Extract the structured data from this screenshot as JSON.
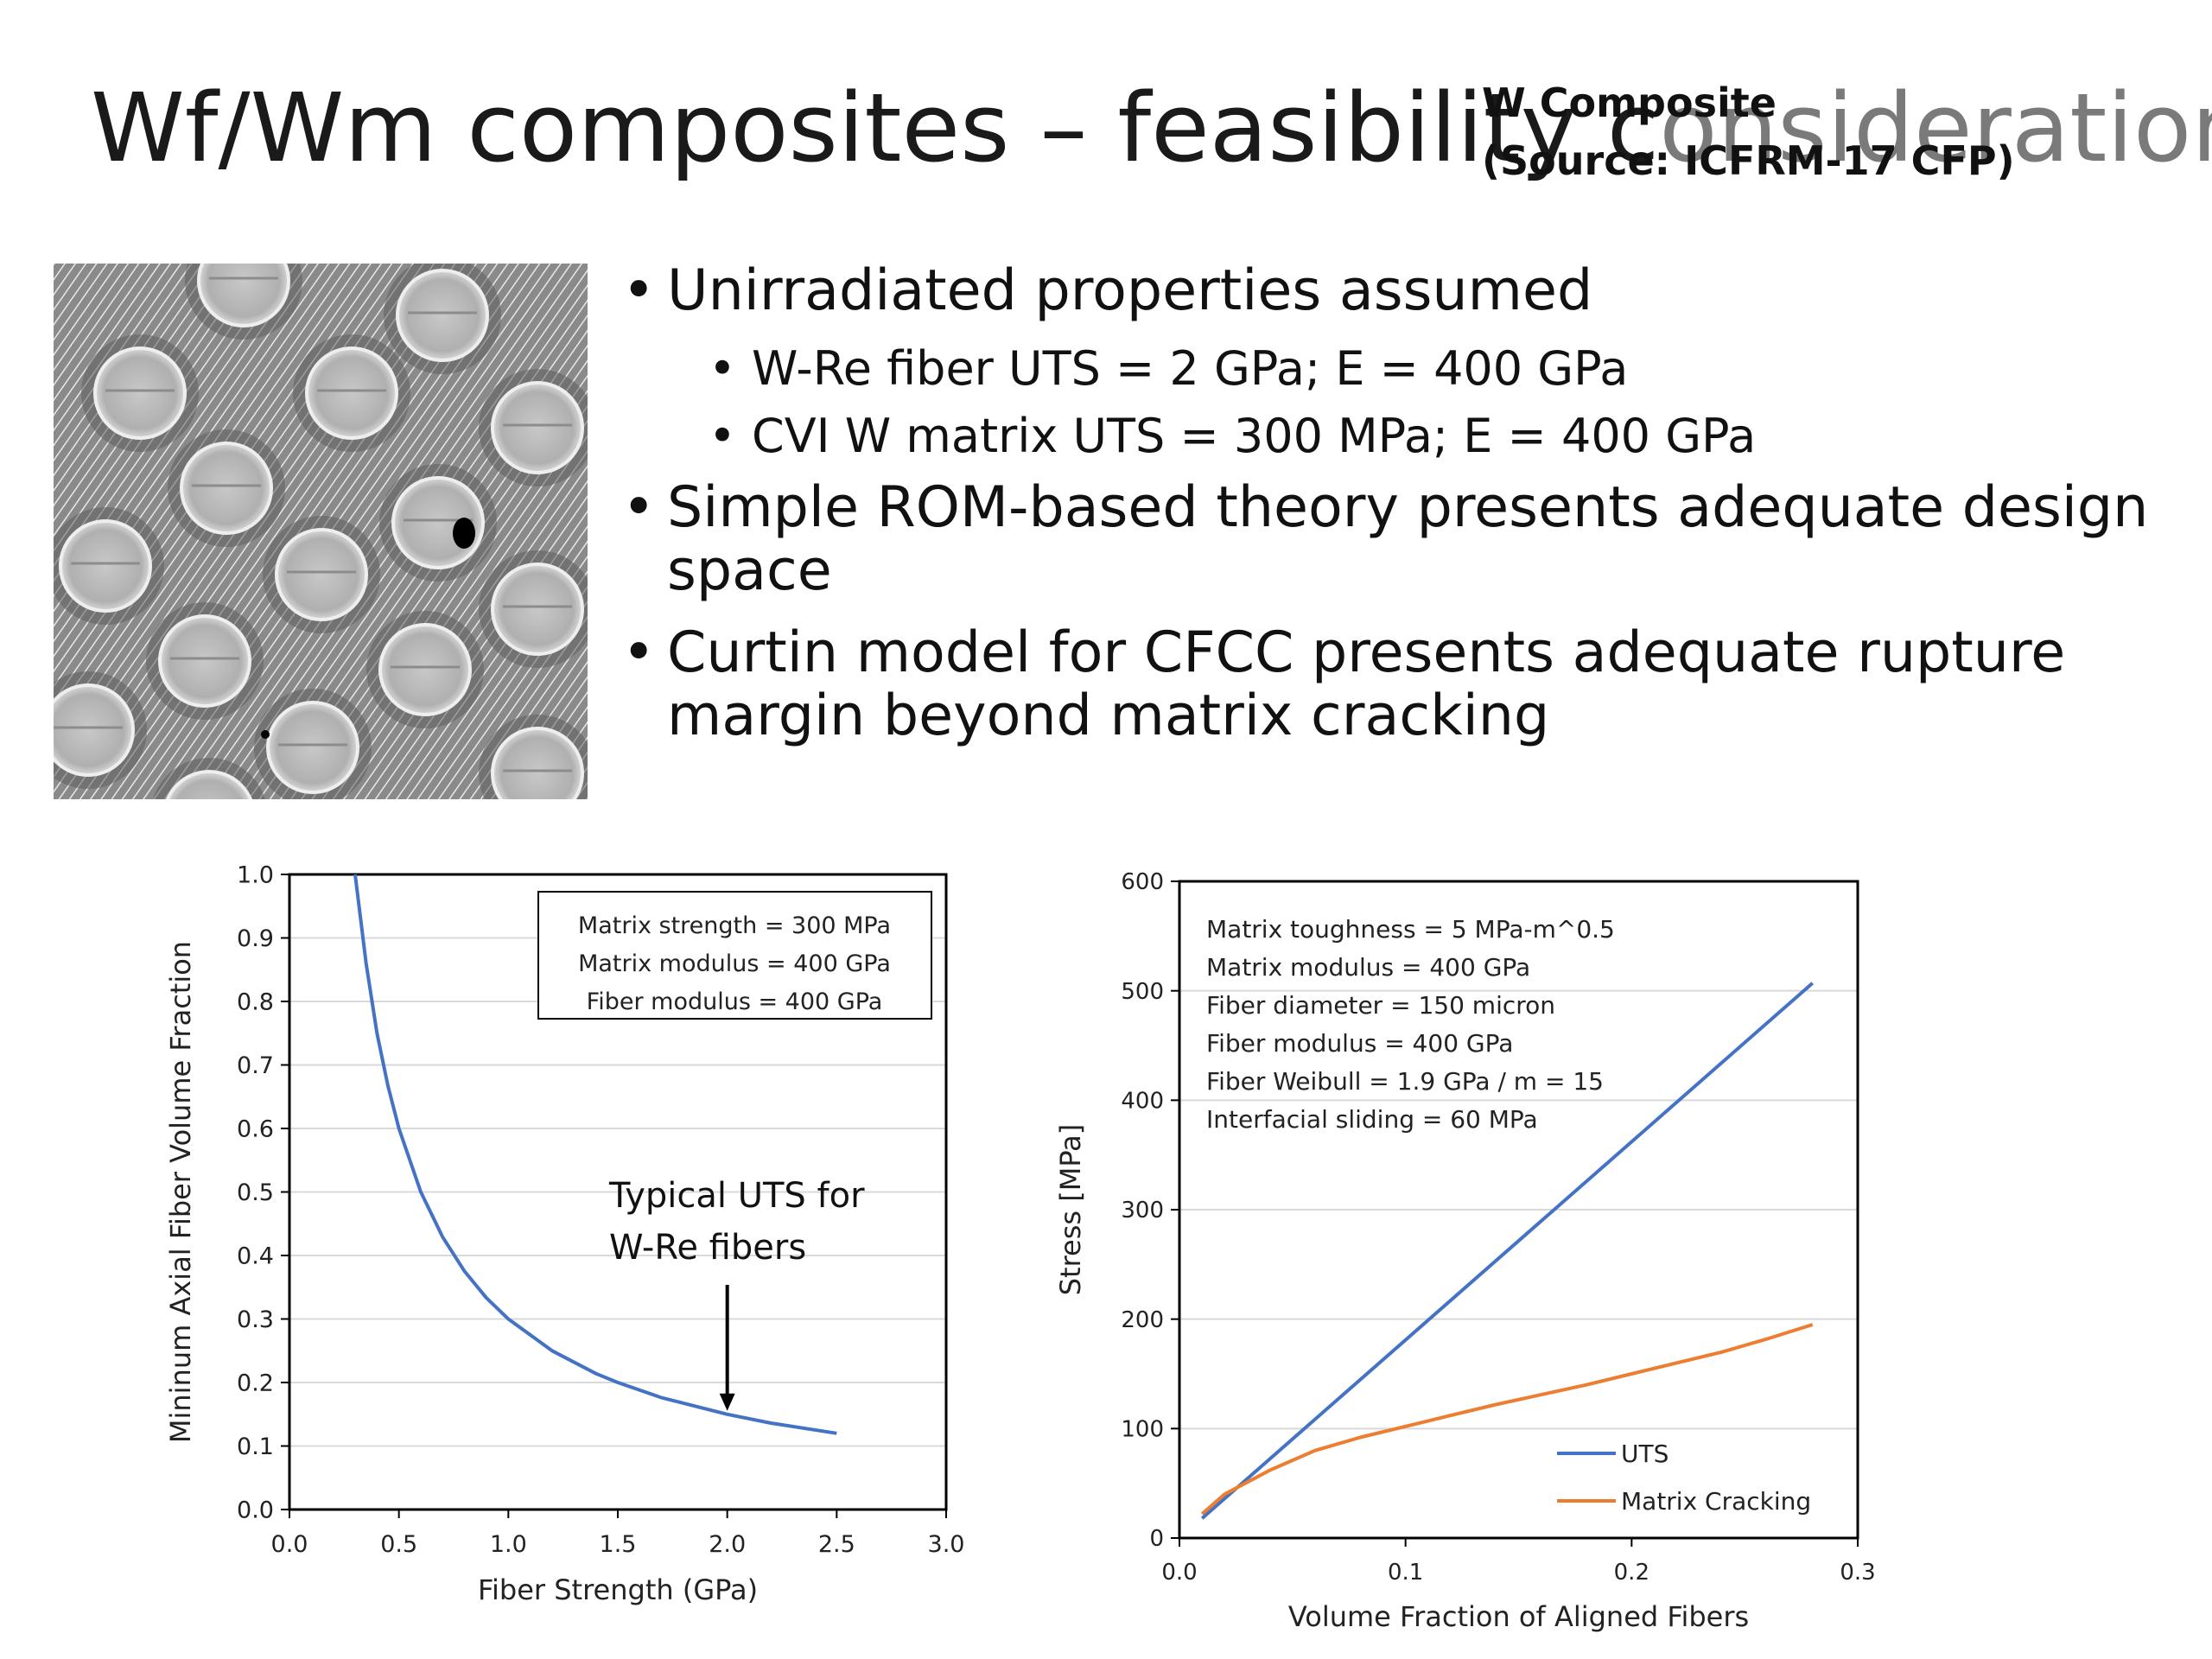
{
  "slide": {
    "title_main": "Wf/Wm composites – feasibility c",
    "title_tail": "onsiderations",
    "source_line1": "W Composite",
    "source_line2": "(Source: ICFRM-17 CFP)"
  },
  "bullets": [
    {
      "text": "Unirradiated properties assumed",
      "sub": [
        "W-Re fiber UTS = 2 GPa; E = 400 GPa",
        "CVI W matrix UTS = 300 MPa; E = 400 GPa"
      ]
    },
    {
      "text": "Simple ROM-based theory presents adequate design space",
      "sub": []
    },
    {
      "text": "Curtin model for CFCC presents adequate rupture margin beyond matrix cracking",
      "sub": []
    }
  ],
  "colors": {
    "blue": "#4472C4",
    "orange": "#ED7D31"
  },
  "chart_data": [
    {
      "type": "line",
      "xlabel": "Fiber Strength (GPa)",
      "ylabel": "Mininum Axial Fiber Volume Fraction",
      "xlim": [
        0,
        3.0
      ],
      "ylim": [
        0,
        1.0
      ],
      "xticks": [
        "0.0",
        "0.5",
        "1.0",
        "1.5",
        "2.0",
        "2.5",
        "3.0"
      ],
      "yticks": [
        "0.0",
        "0.1",
        "0.2",
        "0.3",
        "0.4",
        "0.5",
        "0.6",
        "0.7",
        "0.8",
        "0.9",
        "1.0"
      ],
      "grid": true,
      "legend_box": [
        "Matrix strength = 300 MPa",
        "Matrix modulus = 400 GPa",
        "Fiber modulus = 400 GPa"
      ],
      "annotation": {
        "lines": [
          "Typical UTS for",
          "W-Re fibers"
        ],
        "x": 2.0,
        "y": 0.15
      },
      "series": [
        {
          "color": "#4472C4",
          "x": [
            0.3,
            0.35,
            0.4,
            0.45,
            0.5,
            0.6,
            0.7,
            0.8,
            0.9,
            1.0,
            1.2,
            1.4,
            1.5,
            1.7,
            2.0,
            2.2,
            2.5
          ],
          "y": [
            1.0,
            0.86,
            0.75,
            0.667,
            0.6,
            0.5,
            0.429,
            0.375,
            0.333,
            0.3,
            0.25,
            0.214,
            0.2,
            0.176,
            0.15,
            0.136,
            0.12
          ]
        }
      ]
    },
    {
      "type": "line",
      "xlabel": "Volume Fraction of Aligned Fibers",
      "ylabel": "Stress [MPa]",
      "xlim": [
        0,
        0.3
      ],
      "ylim": [
        0,
        600
      ],
      "xticks": [
        "0.0",
        "0.1",
        "0.2",
        "0.3"
      ],
      "yticks": [
        "0",
        "100",
        "200",
        "300",
        "400",
        "500",
        "600"
      ],
      "grid": true,
      "legend": "bottom-right",
      "notes": [
        "Matrix toughness = 5 MPa-m^0.5",
        "Matrix modulus = 400 GPa",
        "Fiber diameter  = 150 micron",
        "Fiber modulus = 400 GPa",
        "Fiber Weibull = 1.9 GPa / m = 15",
        "Interfacial sliding = 60 MPa"
      ],
      "series": [
        {
          "name": "UTS",
          "color": "#4472C4",
          "x": [
            0.01,
            0.28
          ],
          "y": [
            18,
            507
          ]
        },
        {
          "name": "Matrix Cracking",
          "color": "#ED7D31",
          "x": [
            0.01,
            0.02,
            0.04,
            0.06,
            0.08,
            0.1,
            0.12,
            0.14,
            0.16,
            0.18,
            0.2,
            0.22,
            0.24,
            0.26,
            0.28
          ],
          "y": [
            22,
            40,
            62,
            80,
            92,
            102,
            112,
            122,
            131,
            140,
            150,
            160,
            170,
            182,
            195
          ]
        }
      ]
    }
  ]
}
